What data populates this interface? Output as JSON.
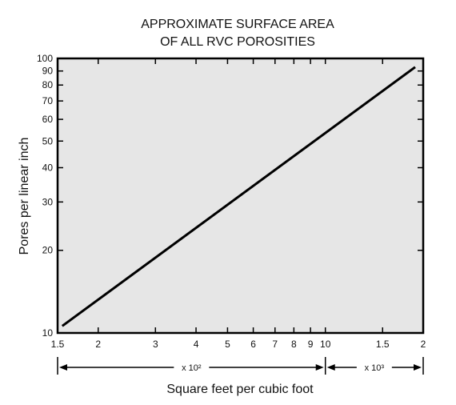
{
  "chart_data": {
    "type": "line",
    "title_lines": [
      "APPROXIMATE SURFACE AREA",
      "OF ALL RVC POROSITIES"
    ],
    "xlabel": "Square feet per cubic foot",
    "ylabel": "Pores per linear inch",
    "x_scale": "log",
    "y_scale": "log",
    "xlim": [
      150,
      2000
    ],
    "ylim": [
      10,
      100
    ],
    "x_ticks": [
      {
        "value": 150,
        "label": "1.5"
      },
      {
        "value": 200,
        "label": "2"
      },
      {
        "value": 300,
        "label": "3"
      },
      {
        "value": 400,
        "label": "4"
      },
      {
        "value": 500,
        "label": "5"
      },
      {
        "value": 600,
        "label": "6"
      },
      {
        "value": 700,
        "label": "7"
      },
      {
        "value": 800,
        "label": "8"
      },
      {
        "value": 900,
        "label": "9"
      },
      {
        "value": 1000,
        "label": "10"
      },
      {
        "value": 1500,
        "label": "1.5"
      },
      {
        "value": 2000,
        "label": "2"
      }
    ],
    "y_ticks": [
      {
        "value": 10,
        "label": "10"
      },
      {
        "value": 20,
        "label": "20"
      },
      {
        "value": 30,
        "label": "30"
      },
      {
        "value": 40,
        "label": "40"
      },
      {
        "value": 50,
        "label": "50"
      },
      {
        "value": 60,
        "label": "60"
      },
      {
        "value": 70,
        "label": "70"
      },
      {
        "value": 80,
        "label": "80"
      },
      {
        "value": 90,
        "label": "90"
      },
      {
        "value": 100,
        "label": "100"
      }
    ],
    "multiplier_ranges": [
      {
        "label": "x 10²",
        "from": 150,
        "to": 1000
      },
      {
        "label": "x 10³",
        "from": 1000,
        "to": 2000
      }
    ],
    "series": [
      {
        "x": [
          155,
          1890
        ],
        "y": [
          10.6,
          93
        ]
      }
    ],
    "grid": false,
    "plot_background": "#e6e6e6",
    "line_color": "#000000"
  }
}
